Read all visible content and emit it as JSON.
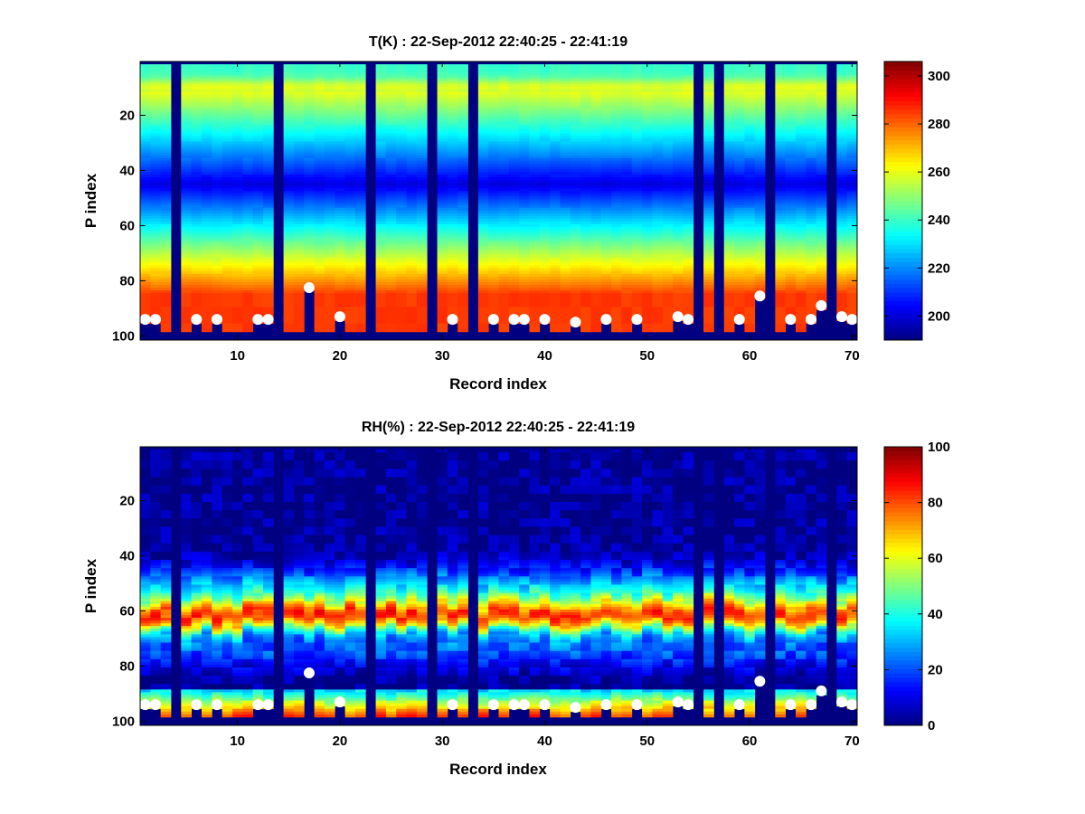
{
  "chart_data": [
    {
      "type": "heatmap",
      "title": "T(K) : 22-Sep-2012 22:40:25 - 22:41:19",
      "xlabel": "Record index",
      "ylabel": "P index",
      "xlim": [
        1,
        70
      ],
      "ylim": [
        1,
        101
      ],
      "y_reversed": true,
      "xticks": [
        "10",
        "20",
        "30",
        "40",
        "50",
        "60",
        "70"
      ],
      "yticks": [
        "20",
        "40",
        "60",
        "80",
        "100"
      ],
      "colormap": "jet",
      "clim": [
        190,
        306
      ],
      "colorbar_ticks": [
        "200",
        "220",
        "240",
        "260",
        "280",
        "300"
      ],
      "profile_description": "warm (~255 K) near P index 10, cold minimum (~200 K) near P index 45, warm (~285 K) near P index 90",
      "missing_records": [
        4,
        14,
        23,
        29,
        33,
        55,
        57,
        62,
        68
      ],
      "surface_markers": [
        {
          "x": 1,
          "y": 94
        },
        {
          "x": 2,
          "y": 94
        },
        {
          "x": 6,
          "y": 94
        },
        {
          "x": 8,
          "y": 94
        },
        {
          "x": 12,
          "y": 94
        },
        {
          "x": 13,
          "y": 94
        },
        {
          "x": 17,
          "y": 82.5
        },
        {
          "x": 20,
          "y": 93
        },
        {
          "x": 31,
          "y": 94
        },
        {
          "x": 35,
          "y": 94
        },
        {
          "x": 37,
          "y": 94
        },
        {
          "x": 38,
          "y": 94
        },
        {
          "x": 40,
          "y": 94
        },
        {
          "x": 43,
          "y": 95
        },
        {
          "x": 46,
          "y": 94
        },
        {
          "x": 49,
          "y": 94
        },
        {
          "x": 53,
          "y": 93
        },
        {
          "x": 54,
          "y": 94
        },
        {
          "x": 59,
          "y": 94
        },
        {
          "x": 61,
          "y": 85.5
        },
        {
          "x": 64,
          "y": 94
        },
        {
          "x": 66,
          "y": 94
        },
        {
          "x": 67,
          "y": 89
        },
        {
          "x": 69,
          "y": 93
        },
        {
          "x": 70,
          "y": 94
        }
      ]
    },
    {
      "type": "heatmap",
      "title": "RH(%) : 22-Sep-2012 22:40:25 - 22:41:19",
      "xlabel": "Record index",
      "ylabel": "P index",
      "xlim": [
        1,
        70
      ],
      "ylim": [
        1,
        101
      ],
      "y_reversed": true,
      "xticks": [
        "10",
        "20",
        "30",
        "40",
        "50",
        "60",
        "70"
      ],
      "yticks": [
        "20",
        "40",
        "60",
        "80",
        "100"
      ],
      "colormap": "jet",
      "clim": [
        0,
        100
      ],
      "colorbar_ticks": [
        "0",
        "20",
        "40",
        "60",
        "80",
        "100"
      ],
      "profile_description": "dry (~0%) above P index 35, moist layer peaking ~70% near P index 62, dry below, humid near surface",
      "missing_records": [
        4,
        14,
        23,
        29,
        33,
        55,
        57,
        62,
        68
      ],
      "surface_markers": [
        {
          "x": 1,
          "y": 94
        },
        {
          "x": 2,
          "y": 94
        },
        {
          "x": 6,
          "y": 94
        },
        {
          "x": 8,
          "y": 94
        },
        {
          "x": 12,
          "y": 94
        },
        {
          "x": 13,
          "y": 94
        },
        {
          "x": 17,
          "y": 82.5
        },
        {
          "x": 20,
          "y": 93
        },
        {
          "x": 31,
          "y": 94
        },
        {
          "x": 35,
          "y": 94
        },
        {
          "x": 37,
          "y": 94
        },
        {
          "x": 38,
          "y": 94
        },
        {
          "x": 40,
          "y": 94
        },
        {
          "x": 43,
          "y": 95
        },
        {
          "x": 46,
          "y": 94
        },
        {
          "x": 49,
          "y": 94
        },
        {
          "x": 53,
          "y": 93
        },
        {
          "x": 54,
          "y": 94
        },
        {
          "x": 59,
          "y": 94
        },
        {
          "x": 61,
          "y": 85.5
        },
        {
          "x": 64,
          "y": 94
        },
        {
          "x": 66,
          "y": 94
        },
        {
          "x": 67,
          "y": 89
        },
        {
          "x": 69,
          "y": 93
        },
        {
          "x": 70,
          "y": 94
        }
      ]
    }
  ]
}
